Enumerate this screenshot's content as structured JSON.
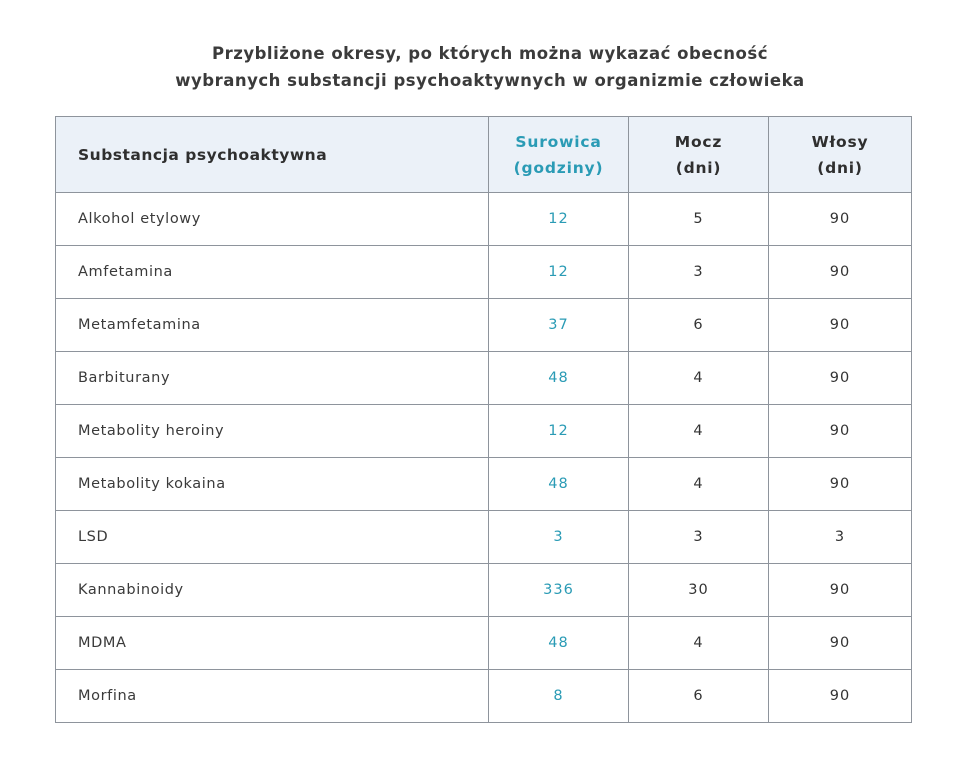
{
  "accent_color": "#2a9bb5",
  "header_bg_color": "#ebf1f8",
  "border_color": "#8e949c",
  "title": {
    "line1": "Przybliżone okresy, po których można wykazać obecność",
    "line2": "wybranych substancji psychoaktywnych w organizmie człowieka"
  },
  "table": {
    "header": {
      "substance": "Substancja psychoaktywna",
      "serum_line1": "Surowica",
      "serum_line2": "(godziny)",
      "urine_line1": "Mocz",
      "urine_line2": "(dni)",
      "hair_line1": "Włosy",
      "hair_line2": "(dni)"
    },
    "rows": [
      {
        "substance": "Alkohol etylowy",
        "serum": "12",
        "urine": "5",
        "hair": "90"
      },
      {
        "substance": "Amfetamina",
        "serum": "12",
        "urine": "3",
        "hair": "90"
      },
      {
        "substance": "Metamfetamina",
        "serum": "37",
        "urine": "6",
        "hair": "90"
      },
      {
        "substance": "Barbiturany",
        "serum": "48",
        "urine": "4",
        "hair": "90"
      },
      {
        "substance": "Metabolity heroiny",
        "serum": "12",
        "urine": "4",
        "hair": "90"
      },
      {
        "substance": "Metabolity kokaina",
        "serum": "48",
        "urine": "4",
        "hair": "90"
      },
      {
        "substance": "LSD",
        "serum": "3",
        "urine": "3",
        "hair": "3"
      },
      {
        "substance": "Kannabinoidy",
        "serum": "336",
        "urine": "30",
        "hair": "90"
      },
      {
        "substance": "MDMA",
        "serum": "48",
        "urine": "4",
        "hair": "90"
      },
      {
        "substance": "Morfina",
        "serum": "8",
        "urine": "6",
        "hair": "90"
      }
    ]
  },
  "chart_data": {
    "type": "table",
    "title": "Przybliżone okresy, po których można wykazać obecność wybranych substancji psychoaktywnych w organizmie człowieka",
    "columns": [
      "Substancja psychoaktywna",
      "Surowica (godziny)",
      "Mocz (dni)",
      "Włosy (dni)"
    ],
    "rows": [
      [
        "Alkohol etylowy",
        12,
        5,
        90
      ],
      [
        "Amfetamina",
        12,
        3,
        90
      ],
      [
        "Metamfetamina",
        37,
        6,
        90
      ],
      [
        "Barbiturany",
        48,
        4,
        90
      ],
      [
        "Metabolity heroiny",
        12,
        4,
        90
      ],
      [
        "Metabolity kokaina",
        48,
        4,
        90
      ],
      [
        "LSD",
        3,
        3,
        3
      ],
      [
        "Kannabinoidy",
        336,
        30,
        90
      ],
      [
        "MDMA",
        48,
        4,
        90
      ],
      [
        "Morfina",
        8,
        6,
        90
      ]
    ],
    "layout_hints": {
      "serum_column_text_color": "#2a9bb5",
      "header_background": "#ebf1f8",
      "grid": true
    }
  }
}
